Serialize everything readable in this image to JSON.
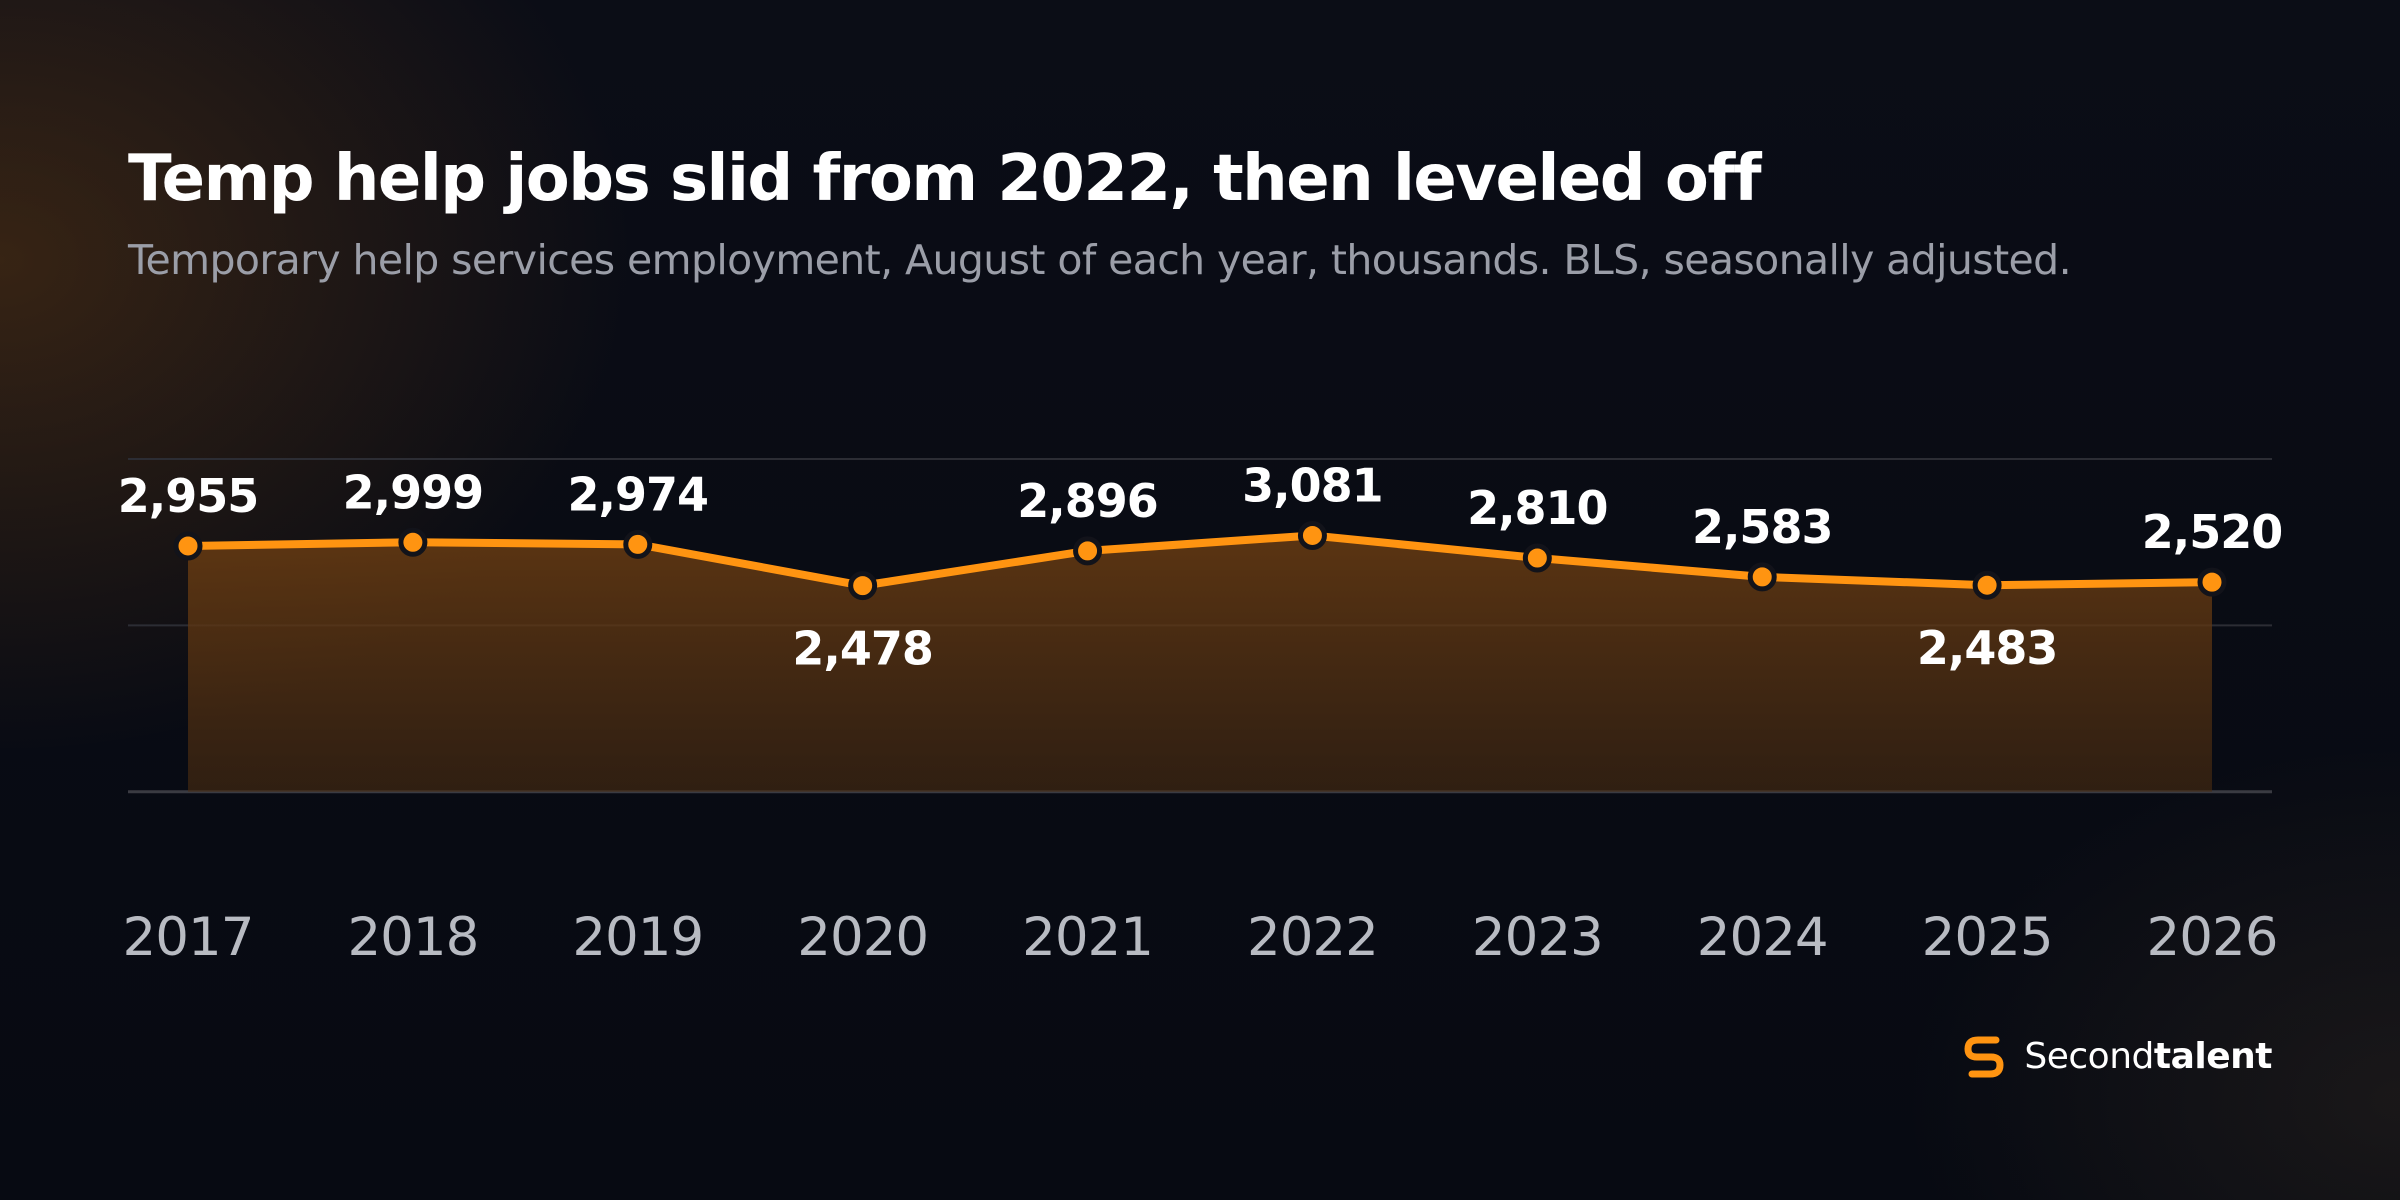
{
  "title": "Temp help jobs slid from 2022, then leveled off",
  "subtitle": "Temporary help services employment, August of each year, thousands. BLS, seasonally adjusted.",
  "brand": {
    "name_regular": "Second",
    "name_bold": "talent"
  },
  "colors": {
    "accent": "#ff9411",
    "marker_outline": "#12131a",
    "area_fill": "#5a3410",
    "gridline": "#2c2d34"
  },
  "chart_data": {
    "type": "line",
    "x": [
      "2017",
      "2018",
      "2019",
      "2020",
      "2021",
      "2022",
      "2023",
      "2024",
      "2025",
      "2026"
    ],
    "values": [
      2955,
      2999,
      2974,
      2478,
      2896,
      3081,
      2810,
      2583,
      2483,
      2520
    ],
    "data_labels": [
      "2,955",
      "2,999",
      "2,974",
      "2,478",
      "2,896",
      "3,081",
      "2,810",
      "2,583",
      "2,483",
      "2,520"
    ],
    "label_position": [
      "above",
      "above",
      "above",
      "below",
      "above",
      "above",
      "above",
      "above",
      "below",
      "above"
    ],
    "ylim": [
      -1000,
      4000
    ],
    "gridlines": [
      0,
      2000,
      4000
    ],
    "grid": true,
    "area_fill": true,
    "xlabel": "",
    "ylabel": ""
  }
}
